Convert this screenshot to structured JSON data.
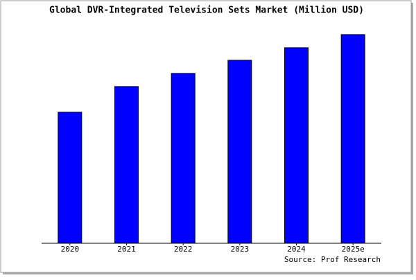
{
  "chart_data": {
    "type": "bar",
    "title": "Global DVR-Integrated Television Sets Market (Million USD)",
    "categories": [
      "2020",
      "2021",
      "2022",
      "2023",
      "2024",
      "2025e"
    ],
    "values": [
      61.8,
      73.9,
      80.1,
      86.3,
      92.2,
      98.4
    ],
    "color": "#0000ff",
    "ylim": [
      0,
      100
    ],
    "source": "Source: Prof Research"
  }
}
